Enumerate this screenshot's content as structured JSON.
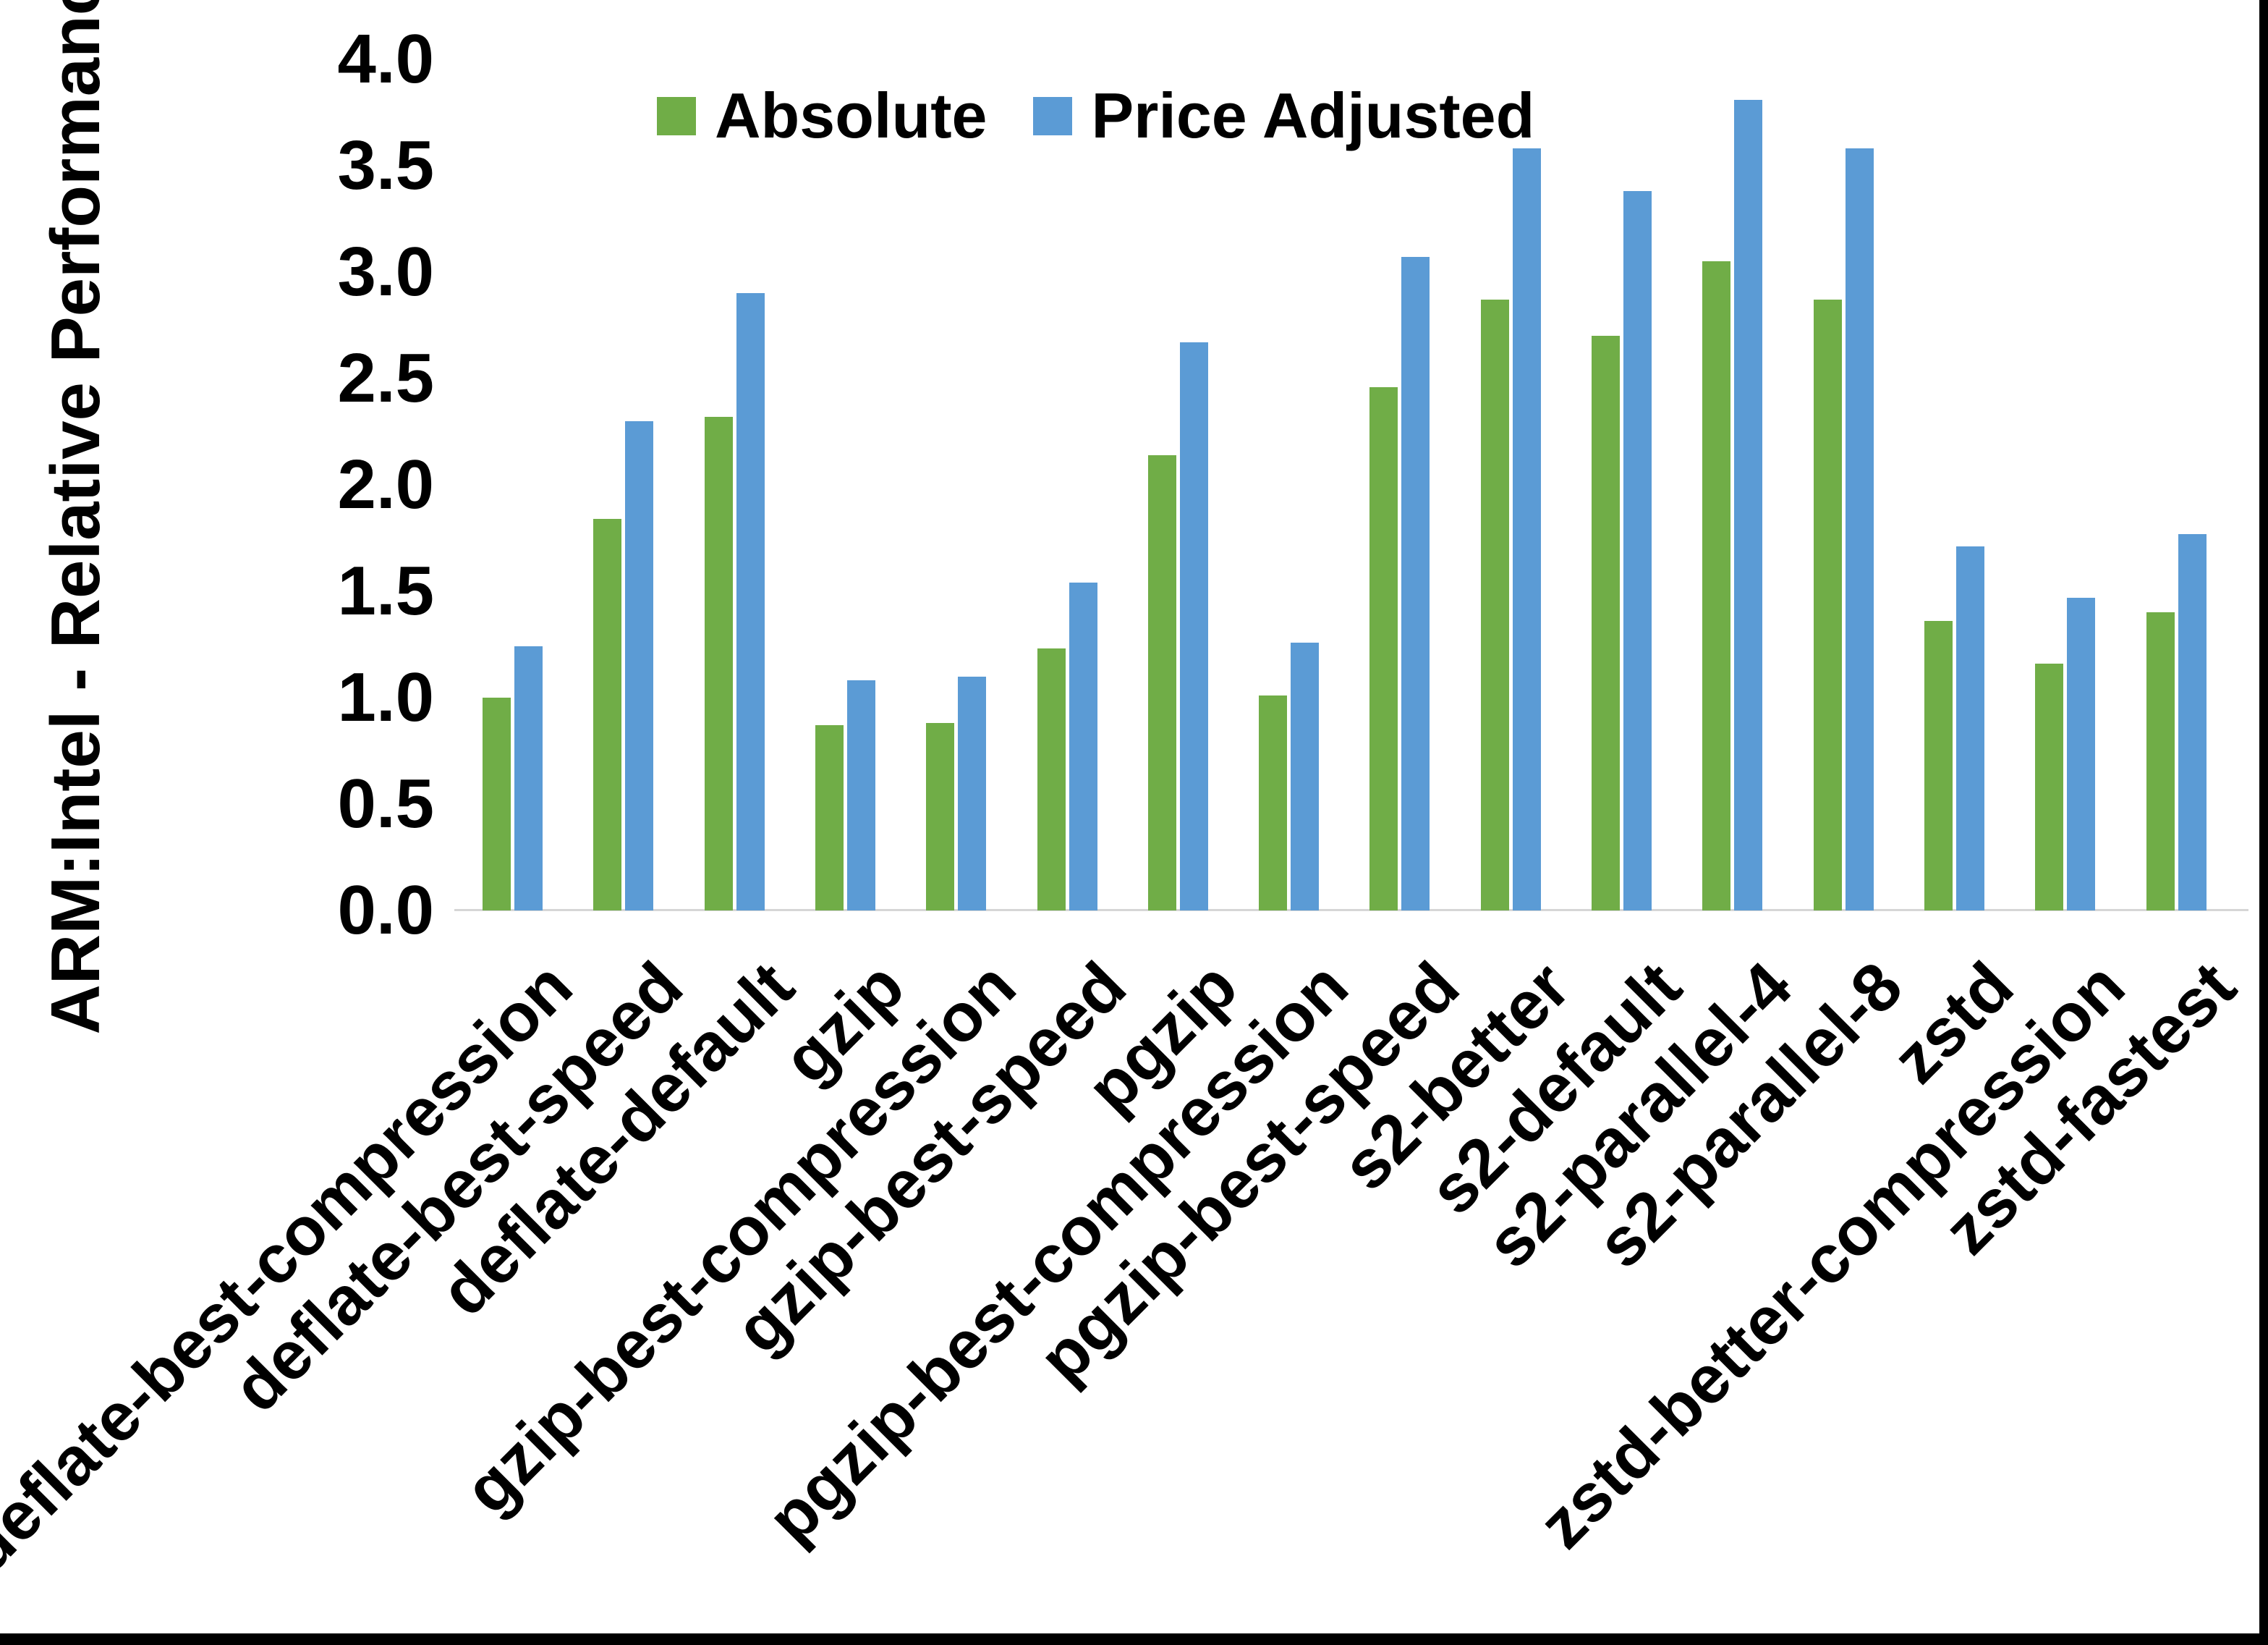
{
  "figure": {
    "background": "#ffffff",
    "axis_line_color": "#d6d6d6",
    "border_color": "#000000"
  },
  "y_axis": {
    "title": "ARM:Intel - Relative Performance",
    "tick_labels": [
      "0.0",
      "0.5",
      "1.0",
      "1.5",
      "2.0",
      "2.5",
      "3.0",
      "3.5",
      "4.0"
    ],
    "min": 0.0,
    "max": 4.0
  },
  "chart_data": {
    "type": "bar",
    "title": "",
    "xlabel": "",
    "ylabel": "ARM:Intel - Relative Performance",
    "ylim": [
      0.0,
      4.0
    ],
    "grid": false,
    "legend_position": "top-center",
    "categories": [
      "deflate-best-compression",
      "deflate-best-speed",
      "deflate-default",
      "gzip",
      "gzip-best-compression",
      "gzip-best-speed",
      "pgzip",
      "pgzip-best-compression",
      "pgzip-best-speed",
      "s2-better",
      "s2-default",
      "s2-parallel-4",
      "s2-parallel-8",
      "zstd",
      "zstd-better-compression",
      "zstd-fastest"
    ],
    "series": [
      {
        "name": "Absolute",
        "color": "#70AD47",
        "values": [
          1.0,
          1.84,
          2.32,
          0.87,
          0.88,
          1.23,
          2.14,
          1.01,
          2.46,
          2.87,
          2.7,
          3.05,
          2.87,
          1.36,
          1.16,
          1.4
        ]
      },
      {
        "name": "Price Adjusted",
        "color": "#5B9BD5",
        "values": [
          1.24,
          2.3,
          2.9,
          1.08,
          1.1,
          1.54,
          2.67,
          1.26,
          3.07,
          3.58,
          3.38,
          3.81,
          3.58,
          1.71,
          1.47,
          1.77
        ]
      }
    ]
  }
}
